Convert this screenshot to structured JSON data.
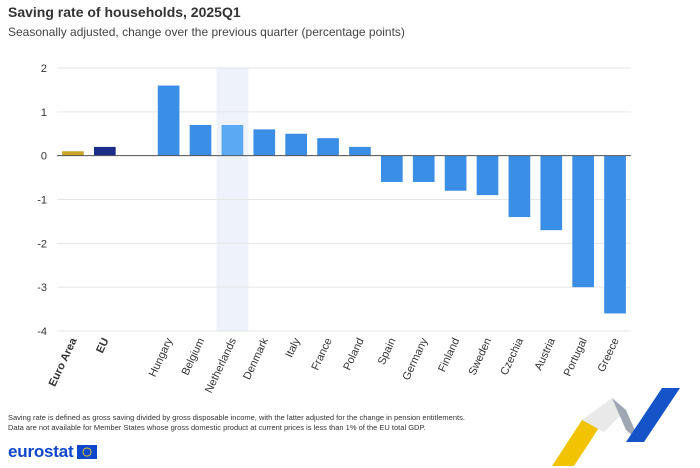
{
  "header": {
    "title": "Saving rate of households, 2025Q1",
    "subtitle": "Seasonally adjusted, change over the previous quarter (percentage points)"
  },
  "footnotes": [
    "Saving rate is defined as gross saving divided by gross disposable income, with the latter adjusted for the change in pension entitlements.",
    "Data are not available for Member States whose gross domestic product at current prices is less than 1% of the EU total GDP."
  ],
  "brand": {
    "name": "eurostat",
    "flag_icon": "eu-flag-icon",
    "logo_icon": "eurostat-swoosh-icon"
  },
  "colors": {
    "euro_area": "#c9a227",
    "eu": "#1a2e8a",
    "country": "#3a8ee6",
    "highlight": "#5aa9f2",
    "highlight_band": "#eef2fa",
    "grid": "#e6e6e6",
    "axis": "#555555"
  },
  "chart_data": {
    "type": "bar",
    "title": "",
    "xlabel": "",
    "ylabel": "",
    "ylim": [
      -4,
      2
    ],
    "yticks": [
      2,
      1,
      0,
      -1,
      -2,
      -3,
      -4
    ],
    "grid": true,
    "highlighted_category": "Netherlands",
    "categories": [
      "Euro Area",
      "EU",
      "",
      "Hungary",
      "Belgium",
      "Netherlands",
      "Denmark",
      "Italy",
      "France",
      "Poland",
      "Spain",
      "Germany",
      "Finland",
      "Sweden",
      "Czechia",
      "Austria",
      "Portugal",
      "Greece"
    ],
    "values": [
      0.1,
      0.2,
      null,
      1.6,
      0.7,
      0.7,
      0.6,
      0.5,
      0.4,
      0.2,
      -0.6,
      -0.6,
      -0.8,
      -0.9,
      -1.4,
      -1.7,
      -3.0,
      -3.6
    ],
    "bold_categories": [
      "Euro Area",
      "EU"
    ]
  }
}
